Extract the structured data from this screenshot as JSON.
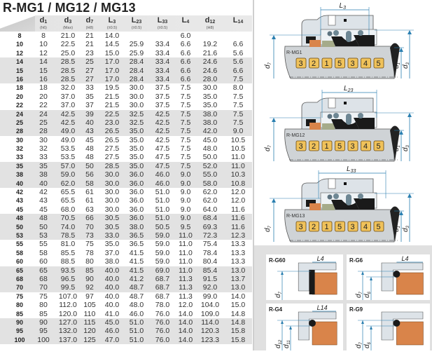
{
  "title": "R-MG1 / MG12 / MG13",
  "columns": [
    {
      "main": "d",
      "sub": "1",
      "note": "(h6)"
    },
    {
      "main": "d",
      "sub": "3",
      "note": "(Max)"
    },
    {
      "main": "d",
      "sub": "7",
      "note": "(H8)"
    },
    {
      "main": "L",
      "sub": "3",
      "note": "(±0.5)"
    },
    {
      "main": "L",
      "sub": "23",
      "note": "(±0.5)"
    },
    {
      "main": "L",
      "sub": "33",
      "note": "(±0.5)"
    },
    {
      "main": "L",
      "sub": "4",
      "note": ""
    },
    {
      "main": "d",
      "sub": "12",
      "note": "(H8)"
    },
    {
      "main": "L",
      "sub": "14",
      "note": ""
    }
  ],
  "rows": [
    [
      "8",
      "8",
      "21.0",
      "21",
      "14.0",
      "",
      "",
      "6.0",
      "",
      ""
    ],
    [
      "10",
      "10",
      "22.5",
      "21",
      "14.5",
      "25.9",
      "33.4",
      "6.6",
      "19.2",
      "6.6"
    ],
    [
      "12",
      "12",
      "25.0",
      "23",
      "15.0",
      "25.9",
      "33.4",
      "6.6",
      "21.6",
      "5.6"
    ],
    [
      "14",
      "14",
      "28.5",
      "25",
      "17.0",
      "28.4",
      "33.4",
      "6.6",
      "24.6",
      "5.6"
    ],
    [
      "15",
      "15",
      "28.5",
      "27",
      "17.0",
      "28.4",
      "33.4",
      "6.6",
      "24.6",
      "6.6"
    ],
    [
      "16",
      "16",
      "28.5",
      "27",
      "17.0",
      "28.4",
      "33.4",
      "6.6",
      "28.0",
      "7.5"
    ],
    [
      "18",
      "18",
      "32.0",
      "33",
      "19.5",
      "30.0",
      "37.5",
      "7.5",
      "30.0",
      "8.0"
    ],
    [
      "20",
      "20",
      "37.0",
      "35",
      "21.5",
      "30.0",
      "37.5",
      "7.5",
      "35.0",
      "7.5"
    ],
    [
      "22",
      "22",
      "37.0",
      "37",
      "21.5",
      "30.0",
      "37.5",
      "7.5",
      "35.0",
      "7.5"
    ],
    [
      "24",
      "24",
      "42.5",
      "39",
      "22.5",
      "32.5",
      "42.5",
      "7.5",
      "38.0",
      "7.5"
    ],
    [
      "25",
      "25",
      "42.5",
      "40",
      "23.0",
      "32.5",
      "42.5",
      "7.5",
      "38.0",
      "7.5"
    ],
    [
      "28",
      "28",
      "49.0",
      "43",
      "26.5",
      "35.0",
      "42.5",
      "7.5",
      "42.0",
      "9.0"
    ],
    [
      "30",
      "30",
      "49.0",
      "45",
      "26.5",
      "35.0",
      "42.5",
      "7.5",
      "45.0",
      "10.5"
    ],
    [
      "32",
      "32",
      "53.5",
      "48",
      "27.5",
      "35.0",
      "47.5",
      "7.5",
      "48.0",
      "10.5"
    ],
    [
      "33",
      "33",
      "53.5",
      "48",
      "27.5",
      "35.0",
      "47.5",
      "7.5",
      "50.0",
      "11.0"
    ],
    [
      "35",
      "35",
      "57.0",
      "50",
      "28.5",
      "35.0",
      "47.5",
      "7.5",
      "52.0",
      "11.0"
    ],
    [
      "38",
      "38",
      "59.0",
      "56",
      "30.0",
      "36.0",
      "46.0",
      "9.0",
      "55.0",
      "10.3"
    ],
    [
      "40",
      "40",
      "62.0",
      "58",
      "30.0",
      "36.0",
      "46.0",
      "9.0",
      "58.0",
      "10.8"
    ],
    [
      "42",
      "42",
      "65.5",
      "61",
      "30.0",
      "36.0",
      "51.0",
      "9.0",
      "62.0",
      "12.0"
    ],
    [
      "43",
      "43",
      "65.5",
      "61",
      "30.0",
      "36.0",
      "51.0",
      "9.0",
      "62.0",
      "12.0"
    ],
    [
      "45",
      "45",
      "68.0",
      "63",
      "30.0",
      "36.0",
      "51.0",
      "9.0",
      "64.0",
      "11.6"
    ],
    [
      "48",
      "48",
      "70.5",
      "66",
      "30.5",
      "36.0",
      "51.0",
      "9.0",
      "68.4",
      "11.6"
    ],
    [
      "50",
      "50",
      "74.0",
      "70",
      "30.5",
      "38.0",
      "50.5",
      "9.5",
      "69.3",
      "11.6"
    ],
    [
      "53",
      "53",
      "78.5",
      "73",
      "33.0",
      "36.5",
      "59.0",
      "11.0",
      "72.3",
      "12.3"
    ],
    [
      "55",
      "55",
      "81.0",
      "75",
      "35.0",
      "36.5",
      "59.0",
      "11.0",
      "75.4",
      "13.3"
    ],
    [
      "58",
      "58",
      "85.5",
      "78",
      "37.0",
      "41.5",
      "59.0",
      "11.0",
      "78.4",
      "13.3"
    ],
    [
      "60",
      "60",
      "88.5",
      "80",
      "38.0",
      "41.5",
      "59.0",
      "11.0",
      "80.4",
      "13.3"
    ],
    [
      "65",
      "65",
      "93.5",
      "85",
      "40.0",
      "41.5",
      "69.0",
      "11.0",
      "85.4",
      "13.0"
    ],
    [
      "68",
      "68",
      "96.5",
      "90",
      "40.0",
      "41.2",
      "68.7",
      "11.3",
      "91.5",
      "13.7"
    ],
    [
      "70",
      "70",
      "99.5",
      "92",
      "40.0",
      "48.7",
      "68.7",
      "11.3",
      "92.0",
      "13.0"
    ],
    [
      "75",
      "75",
      "107.0",
      "97",
      "40.0",
      "48.7",
      "68.7",
      "11.3",
      "99.0",
      "14.0"
    ],
    [
      "80",
      "80",
      "112.0",
      "105",
      "40.0",
      "48.0",
      "78.0",
      "12.0",
      "104.0",
      "15.0"
    ],
    [
      "85",
      "85",
      "120.0",
      "110",
      "41.0",
      "46.0",
      "76.0",
      "14.0",
      "109.0",
      "14.8"
    ],
    [
      "90",
      "90",
      "127.0",
      "115",
      "45.0",
      "51.0",
      "76.0",
      "14.0",
      "114.0",
      "14.8"
    ],
    [
      "95",
      "95",
      "132.0",
      "120",
      "46.0",
      "51.0",
      "76.0",
      "14.0",
      "120.3",
      "15.8"
    ],
    [
      "100",
      "100",
      "137.0",
      "125",
      "47.0",
      "51.0",
      "76.0",
      "14.0",
      "123.3",
      "15.8"
    ]
  ],
  "seals": [
    {
      "model": "R-MG1",
      "length": "L3",
      "d7": "d7",
      "d1": "d1",
      "d3": "d3",
      "parts": [
        "3",
        "2",
        "1",
        "5",
        "3",
        "4",
        "5"
      ]
    },
    {
      "model": "R-MG12",
      "length": "L23",
      "d7": "d7",
      "d1": "d1",
      "d3": "d3",
      "parts": [
        "3",
        "2",
        "1",
        "5",
        "3",
        "4",
        "5"
      ]
    },
    {
      "model": "R-MG13",
      "length": "L33",
      "d7": "d7",
      "d1": "d1",
      "d3": "d3",
      "parts": [
        "3",
        "2",
        "1",
        "5",
        "3",
        "4",
        "5"
      ]
    }
  ],
  "seats": [
    {
      "model": "R-G60",
      "length": "L4",
      "dims": [
        "d7"
      ]
    },
    {
      "model": "R-G6",
      "length": "L4",
      "dims": [
        "d7",
        "d6"
      ]
    },
    {
      "model": "R-G4",
      "length": "L14",
      "dims": [
        "d12",
        "d11"
      ]
    },
    {
      "model": "R-G9",
      "length": "",
      "dims": [
        "d7",
        "d6"
      ]
    }
  ],
  "colors": {
    "row_band": "#e2e2e2",
    "dim_line": "#2a7fb0",
    "badge": "#f0c25a",
    "seat": "#d9844a",
    "elastomer": "#1a1a1a"
  }
}
